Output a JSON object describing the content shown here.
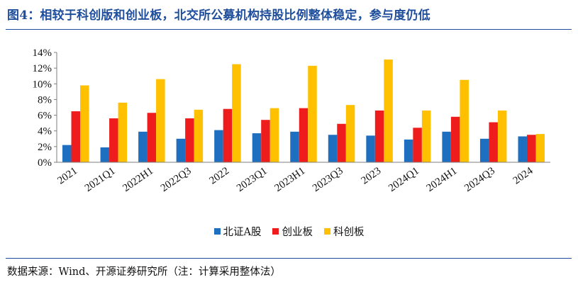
{
  "title": "图4：相较于科创版和创业板，北交所公募机构持股比例整体稳定，参与度仍低",
  "source": "数据来源：Wind、开源证券研究所（注：计算采用整体法）",
  "colors": {
    "title": "#1f4e9c",
    "series": [
      "#1f6fc0",
      "#ee1c1c",
      "#ffc000"
    ]
  },
  "chart_data": {
    "type": "bar",
    "categories": [
      "2021",
      "2021Q1",
      "2022H1",
      "2022Q3",
      "2022",
      "2023Q1",
      "2023H1",
      "2023Q3",
      "2023",
      "2024Q1",
      "2024H1",
      "2024Q3",
      "2024"
    ],
    "series": [
      {
        "name": "北证A股",
        "values": [
          2.2,
          1.9,
          3.9,
          3.0,
          4.1,
          3.7,
          3.9,
          3.5,
          3.4,
          2.9,
          3.9,
          3.0,
          3.3
        ]
      },
      {
        "name": "创业板",
        "values": [
          6.5,
          5.6,
          6.3,
          5.6,
          6.8,
          5.4,
          6.9,
          4.9,
          6.6,
          4.4,
          5.8,
          5.1,
          3.5
        ]
      },
      {
        "name": "科创板",
        "values": [
          9.8,
          7.6,
          10.6,
          6.7,
          12.5,
          6.9,
          12.3,
          7.3,
          13.1,
          6.6,
          10.5,
          6.6,
          3.6
        ]
      }
    ],
    "ylim": [
      0,
      14
    ],
    "yticks": [
      0,
      2,
      4,
      6,
      8,
      10,
      12,
      14
    ],
    "ytick_labels": [
      "0%",
      "2%",
      "4%",
      "6%",
      "8%",
      "10%",
      "12%",
      "14%"
    ],
    "grid": false,
    "legend": "bottom"
  }
}
